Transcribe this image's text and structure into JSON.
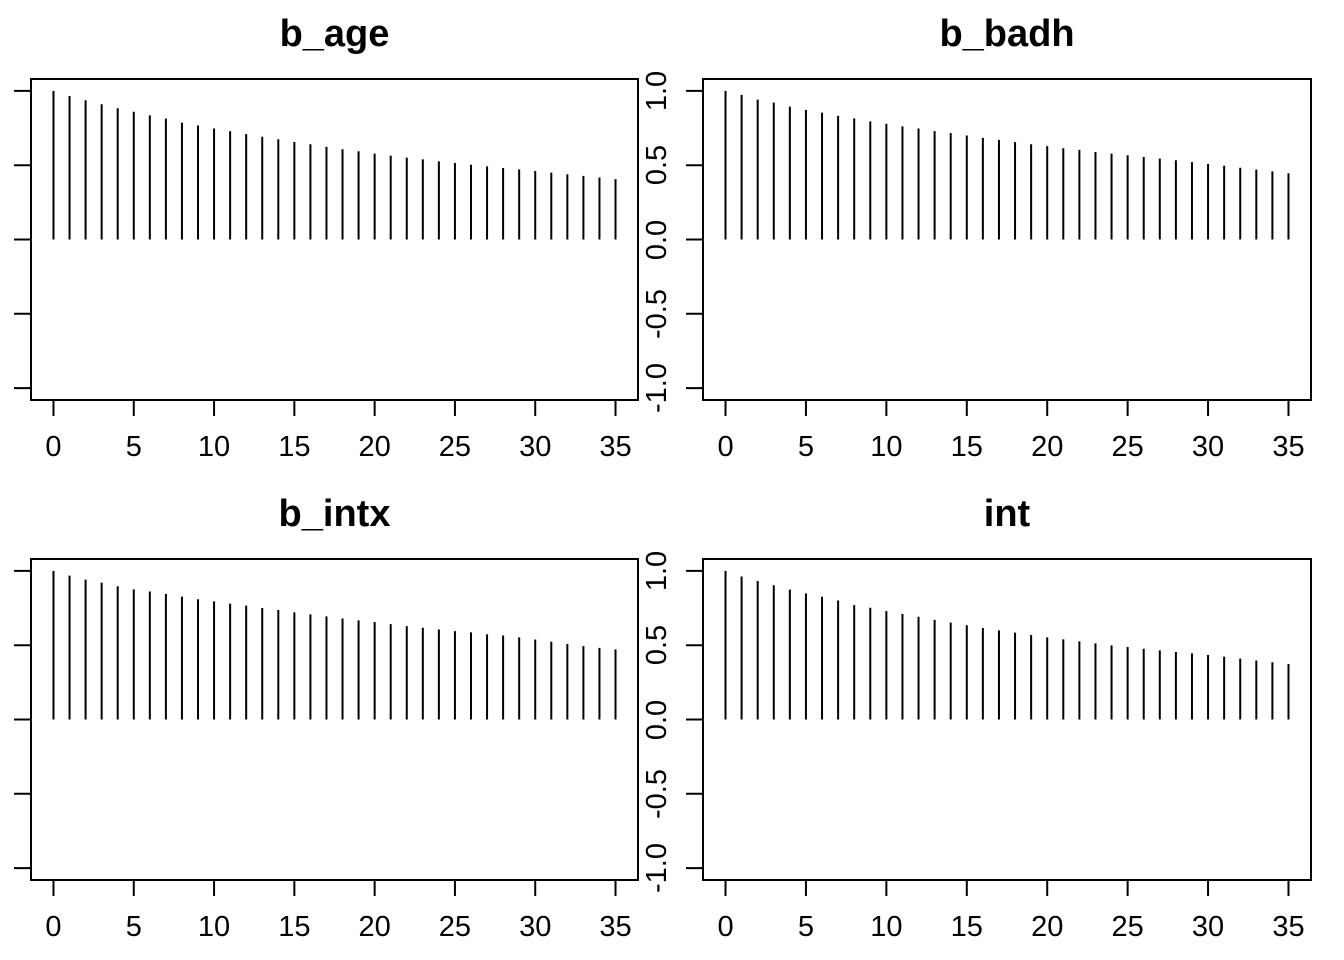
{
  "figure": {
    "background_color": "#ffffff",
    "foreground_color": "#000000",
    "layout": "2x2-grid",
    "plot_style": "acf-vertical-bars"
  },
  "chart_data": [
    {
      "type": "bar",
      "title": "b_age",
      "xlabel": "",
      "ylabel": "",
      "x": [
        0,
        1,
        2,
        3,
        4,
        5,
        6,
        7,
        8,
        9,
        10,
        11,
        12,
        13,
        14,
        15,
        16,
        17,
        18,
        19,
        20,
        21,
        22,
        23,
        24,
        25,
        26,
        27,
        28,
        29,
        30,
        31,
        32,
        33,
        34,
        35
      ],
      "values": [
        1.0,
        0.966,
        0.937,
        0.91,
        0.883,
        0.86,
        0.835,
        0.813,
        0.786,
        0.767,
        0.747,
        0.729,
        0.709,
        0.691,
        0.675,
        0.657,
        0.641,
        0.623,
        0.607,
        0.594,
        0.578,
        0.564,
        0.551,
        0.539,
        0.526,
        0.515,
        0.503,
        0.492,
        0.481,
        0.472,
        0.461,
        0.45,
        0.439,
        0.428,
        0.417,
        0.406
      ],
      "xticks": [
        0,
        5,
        10,
        15,
        20,
        25,
        30,
        35
      ],
      "xtick_labels": [
        "0",
        "5",
        "10",
        "15",
        "20",
        "25",
        "30",
        "35"
      ],
      "yticks": [
        1.0,
        0.5,
        0.0,
        -0.5,
        -1.0
      ],
      "ytick_labels": [
        "1.0",
        "0.5",
        "0.0",
        "-0.5",
        "-1.0"
      ],
      "y_tick_labels_shown": false,
      "xlim": [
        -1.4,
        36.4
      ],
      "ylim": [
        -1.08,
        1.08
      ],
      "grid": false,
      "legend": "none"
    },
    {
      "type": "bar",
      "title": "b_badh",
      "xlabel": "",
      "ylabel": "",
      "x": [
        0,
        1,
        2,
        3,
        4,
        5,
        6,
        7,
        8,
        9,
        10,
        11,
        12,
        13,
        14,
        15,
        16,
        17,
        18,
        19,
        20,
        21,
        22,
        23,
        24,
        25,
        26,
        27,
        28,
        29,
        30,
        31,
        32,
        33,
        34,
        35
      ],
      "values": [
        1.0,
        0.973,
        0.941,
        0.921,
        0.894,
        0.872,
        0.853,
        0.833,
        0.815,
        0.795,
        0.779,
        0.761,
        0.747,
        0.729,
        0.716,
        0.7,
        0.684,
        0.67,
        0.655,
        0.641,
        0.628,
        0.614,
        0.603,
        0.589,
        0.578,
        0.567,
        0.555,
        0.544,
        0.533,
        0.521,
        0.509,
        0.496,
        0.483,
        0.47,
        0.458,
        0.446
      ],
      "xticks": [
        0,
        5,
        10,
        15,
        20,
        25,
        30,
        35
      ],
      "xtick_labels": [
        "0",
        "5",
        "10",
        "15",
        "20",
        "25",
        "30",
        "35"
      ],
      "yticks": [
        1.0,
        0.5,
        0.0,
        -0.5,
        -1.0
      ],
      "ytick_labels": [
        "1.0",
        "0.5",
        "0.0",
        "-0.5",
        "-1.0"
      ],
      "y_tick_labels_shown": true,
      "xlim": [
        -1.4,
        36.4
      ],
      "ylim": [
        -1.08,
        1.08
      ],
      "grid": false,
      "legend": "none"
    },
    {
      "type": "bar",
      "title": "b_intx",
      "xlabel": "",
      "ylabel": "",
      "x": [
        0,
        1,
        2,
        3,
        4,
        5,
        6,
        7,
        8,
        9,
        10,
        11,
        12,
        13,
        14,
        15,
        16,
        17,
        18,
        19,
        20,
        21,
        22,
        23,
        24,
        25,
        26,
        27,
        28,
        29,
        30,
        31,
        32,
        33,
        34,
        35
      ],
      "values": [
        1.0,
        0.968,
        0.941,
        0.921,
        0.897,
        0.876,
        0.861,
        0.845,
        0.827,
        0.809,
        0.795,
        0.78,
        0.766,
        0.75,
        0.737,
        0.721,
        0.707,
        0.694,
        0.68,
        0.667,
        0.656,
        0.642,
        0.628,
        0.617,
        0.606,
        0.595,
        0.586,
        0.574,
        0.565,
        0.553,
        0.538,
        0.523,
        0.508,
        0.494,
        0.482,
        0.472
      ],
      "xticks": [
        0,
        5,
        10,
        15,
        20,
        25,
        30,
        35
      ],
      "xtick_labels": [
        "0",
        "5",
        "10",
        "15",
        "20",
        "25",
        "30",
        "35"
      ],
      "yticks": [
        1.0,
        0.5,
        0.0,
        -0.5,
        -1.0
      ],
      "ytick_labels": [
        "1.0",
        "0.5",
        "0.0",
        "-0.5",
        "-1.0"
      ],
      "y_tick_labels_shown": false,
      "xlim": [
        -1.4,
        36.4
      ],
      "ylim": [
        -1.08,
        1.08
      ],
      "grid": false,
      "legend": "none"
    },
    {
      "type": "bar",
      "title": "int",
      "xlabel": "",
      "ylabel": "",
      "x": [
        0,
        1,
        2,
        3,
        4,
        5,
        6,
        7,
        8,
        9,
        10,
        11,
        12,
        13,
        14,
        15,
        16,
        17,
        18,
        19,
        20,
        21,
        22,
        23,
        24,
        25,
        26,
        27,
        28,
        29,
        30,
        31,
        32,
        33,
        34,
        35
      ],
      "values": [
        1.0,
        0.962,
        0.932,
        0.903,
        0.874,
        0.849,
        0.826,
        0.801,
        0.77,
        0.752,
        0.729,
        0.711,
        0.691,
        0.67,
        0.652,
        0.634,
        0.616,
        0.6,
        0.585,
        0.569,
        0.553,
        0.539,
        0.526,
        0.512,
        0.499,
        0.488,
        0.476,
        0.465,
        0.454,
        0.445,
        0.435,
        0.423,
        0.41,
        0.397,
        0.385,
        0.373
      ],
      "xticks": [
        0,
        5,
        10,
        15,
        20,
        25,
        30,
        35
      ],
      "xtick_labels": [
        "0",
        "5",
        "10",
        "15",
        "20",
        "25",
        "30",
        "35"
      ],
      "yticks": [
        1.0,
        0.5,
        0.0,
        -0.5,
        -1.0
      ],
      "ytick_labels": [
        "1.0",
        "0.5",
        "0.0",
        "-0.5",
        "-1.0"
      ],
      "y_tick_labels_shown": true,
      "xlim": [
        -1.4,
        36.4
      ],
      "ylim": [
        -1.08,
        1.08
      ],
      "grid": false,
      "legend": "none"
    }
  ]
}
